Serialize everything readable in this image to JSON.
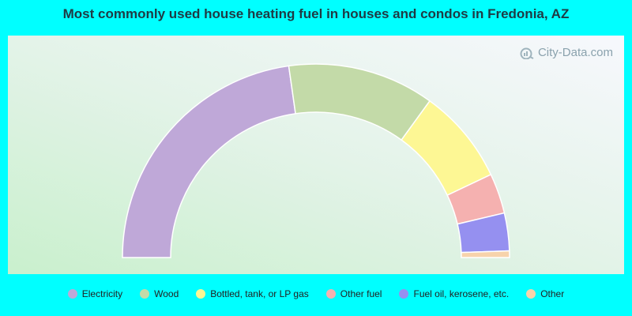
{
  "title": "Most commonly used house heating fuel in houses and condos in Fredonia, AZ",
  "watermark": "City-Data.com",
  "chart_data": {
    "type": "pie",
    "variant": "half-donut",
    "title": "Most commonly used house heating fuel in houses and condos in Fredonia, AZ",
    "legend_position": "bottom",
    "categories": [
      "Electricity",
      "Wood",
      "Bottled, tank, or LP gas",
      "Other fuel",
      "Fuel oil, kerosene, etc.",
      "Other"
    ],
    "values": [
      45.5,
      24.5,
      15.9,
      6.7,
      6.3,
      1.1
    ],
    "colors": [
      "#bfa8d8",
      "#c3daa8",
      "#fdf794",
      "#f5b1b0",
      "#9590f0",
      "#f7d3ab"
    ]
  }
}
